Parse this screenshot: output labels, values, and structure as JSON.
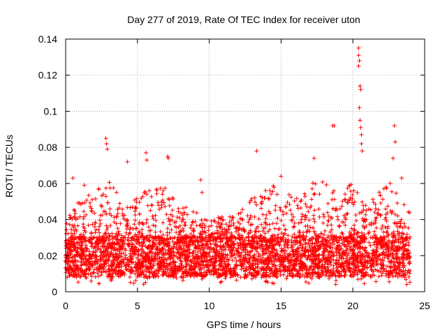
{
  "chart_data": {
    "type": "scatter",
    "title": "Day 277 of 2019, Rate Of TEC Index for receiver uton",
    "xlabel": "GPS time / hours",
    "ylabel": "ROTI / TECUs",
    "xlim": [
      0,
      25
    ],
    "ylim": [
      0,
      0.14
    ],
    "xticks": [
      0,
      5,
      10,
      15,
      20,
      25
    ],
    "yticks": [
      0,
      0.02,
      0.04,
      0.06,
      0.08,
      0.1,
      0.12,
      0.14
    ],
    "xtick_labels": [
      "0",
      "5",
      "10",
      "15",
      "20",
      "25"
    ],
    "ytick_labels": [
      "0",
      "0.02",
      "0.04",
      "0.06",
      "0.08",
      "0.1",
      "0.12",
      "0.14"
    ],
    "grid": true,
    "marker": "+",
    "series_color": "#ff0000",
    "grid_color": "#a0a0a0",
    "data_range_hours": [
      0,
      24
    ],
    "baseline_band": [
      0.008,
      0.03
    ],
    "notable_points": [
      {
        "x": 2.8,
        "y": 0.085
      },
      {
        "x": 2.85,
        "y": 0.082
      },
      {
        "x": 2.9,
        "y": 0.079
      },
      {
        "x": 5.6,
        "y": 0.077
      },
      {
        "x": 5.65,
        "y": 0.073
      },
      {
        "x": 4.3,
        "y": 0.072
      },
      {
        "x": 7.1,
        "y": 0.075
      },
      {
        "x": 7.15,
        "y": 0.074
      },
      {
        "x": 13.3,
        "y": 0.078
      },
      {
        "x": 17.3,
        "y": 0.074
      },
      {
        "x": 18.6,
        "y": 0.092
      },
      {
        "x": 18.7,
        "y": 0.092
      },
      {
        "x": 20.4,
        "y": 0.135
      },
      {
        "x": 20.4,
        "y": 0.131
      },
      {
        "x": 20.45,
        "y": 0.128
      },
      {
        "x": 20.4,
        "y": 0.125
      },
      {
        "x": 20.5,
        "y": 0.114
      },
      {
        "x": 20.55,
        "y": 0.112
      },
      {
        "x": 20.45,
        "y": 0.102
      },
      {
        "x": 20.5,
        "y": 0.095
      },
      {
        "x": 20.55,
        "y": 0.091
      },
      {
        "x": 20.6,
        "y": 0.087
      },
      {
        "x": 20.6,
        "y": 0.082
      },
      {
        "x": 20.65,
        "y": 0.078
      },
      {
        "x": 22.9,
        "y": 0.092
      },
      {
        "x": 22.95,
        "y": 0.083
      },
      {
        "x": 22.8,
        "y": 0.074
      },
      {
        "x": 9.4,
        "y": 0.062
      },
      {
        "x": 9.5,
        "y": 0.055
      },
      {
        "x": 23.4,
        "y": 0.063
      },
      {
        "x": 0.5,
        "y": 0.063
      },
      {
        "x": 1.3,
        "y": 0.059
      },
      {
        "x": 15.0,
        "y": 0.064
      }
    ],
    "activity_profile": [
      {
        "x": 0.0,
        "peak": 0.04
      },
      {
        "x": 1.0,
        "peak": 0.052
      },
      {
        "x": 2.0,
        "peak": 0.055
      },
      {
        "x": 3.0,
        "peak": 0.062
      },
      {
        "x": 4.0,
        "peak": 0.052
      },
      {
        "x": 5.0,
        "peak": 0.055
      },
      {
        "x": 6.0,
        "peak": 0.058
      },
      {
        "x": 7.0,
        "peak": 0.058
      },
      {
        "x": 8.0,
        "peak": 0.048
      },
      {
        "x": 9.0,
        "peak": 0.045
      },
      {
        "x": 10.0,
        "peak": 0.04
      },
      {
        "x": 11.0,
        "peak": 0.042
      },
      {
        "x": 12.0,
        "peak": 0.045
      },
      {
        "x": 13.0,
        "peak": 0.055
      },
      {
        "x": 14.0,
        "peak": 0.06
      },
      {
        "x": 15.0,
        "peak": 0.058
      },
      {
        "x": 16.0,
        "peak": 0.052
      },
      {
        "x": 17.0,
        "peak": 0.06
      },
      {
        "x": 18.0,
        "peak": 0.062
      },
      {
        "x": 19.0,
        "peak": 0.055
      },
      {
        "x": 20.0,
        "peak": 0.062
      },
      {
        "x": 21.0,
        "peak": 0.048
      },
      {
        "x": 22.0,
        "peak": 0.058
      },
      {
        "x": 23.0,
        "peak": 0.062
      },
      {
        "x": 24.0,
        "peak": 0.045
      }
    ],
    "sample_count": 4200
  }
}
